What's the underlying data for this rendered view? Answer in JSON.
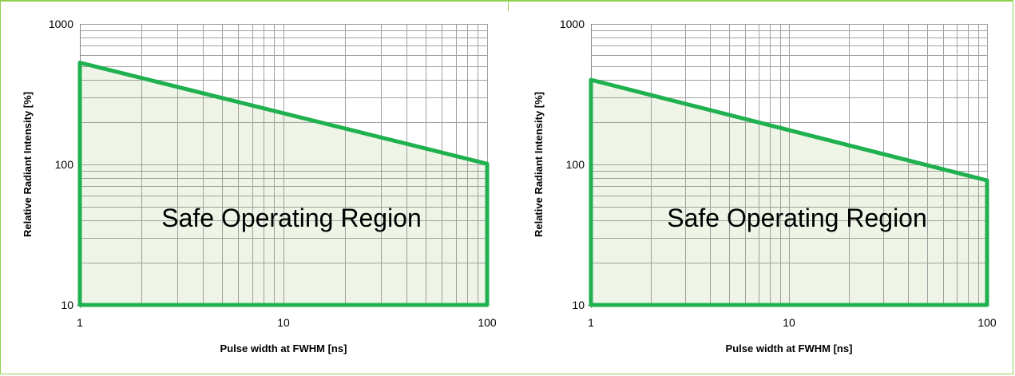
{
  "colors": {
    "boundary": "#1fb04f",
    "fill": "#eef5e6",
    "grid": "#a0a0a0",
    "axis": "#868686",
    "frame": "#92d050"
  },
  "chart_data": [
    {
      "type": "area",
      "scale": {
        "x": "log",
        "y": "log"
      },
      "xlabel": "Pulse width at FWHM [ns]",
      "ylabel": "Relative Radiant Intensity [%]",
      "xlim": [
        1,
        100
      ],
      "ylim": [
        10,
        1000
      ],
      "xticks": [
        "1",
        "10",
        "100"
      ],
      "yticks": [
        "10",
        "100",
        "1000"
      ],
      "grid": true,
      "region_label": "Safe Operating Region",
      "boundary": {
        "x": [
          1,
          1,
          100,
          100
        ],
        "y": [
          10,
          530,
          101,
          10
        ]
      }
    },
    {
      "type": "area",
      "scale": {
        "x": "log",
        "y": "log"
      },
      "xlabel": "Pulse width at FWHM [ns]",
      "ylabel": "Relative Radiant Intensity [%]",
      "xlim": [
        1,
        100
      ],
      "ylim": [
        10,
        1000
      ],
      "xticks": [
        "1",
        "10",
        "100"
      ],
      "yticks": [
        "10",
        "100",
        "1000"
      ],
      "grid": true,
      "region_label": "Safe Operating Region",
      "boundary": {
        "x": [
          1,
          1,
          100,
          100
        ],
        "y": [
          10,
          400,
          77,
          10
        ]
      }
    }
  ]
}
